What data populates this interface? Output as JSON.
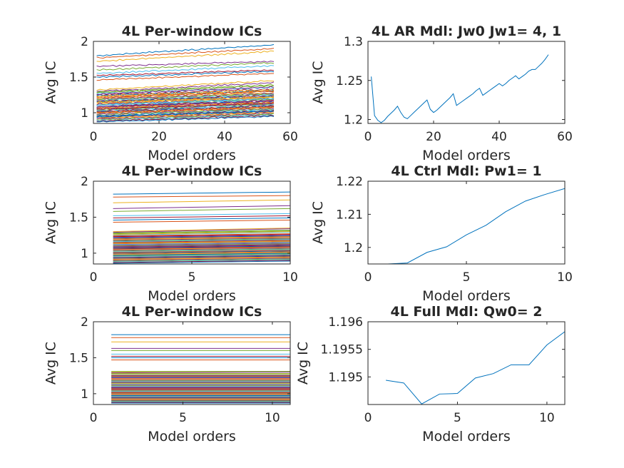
{
  "chart_data": [
    {
      "type": "line",
      "title": "4L Per-window ICs",
      "xlabel": "Model orders",
      "ylabel": "Avg IC",
      "xlim": [
        0,
        60
      ],
      "ylim": [
        0.85,
        2
      ],
      "xticks": [
        "0",
        "20",
        "40",
        "60"
      ],
      "yticks": [
        "1",
        "1.5",
        "2"
      ],
      "x_range": [
        1,
        55
      ],
      "series_count": 60,
      "series_start_values": [
        1.8,
        1.77,
        1.72,
        1.65,
        1.6,
        1.55,
        1.52,
        1.5,
        1.46,
        1.32,
        1.3,
        1.28,
        1.27,
        1.25,
        1.24,
        1.22,
        1.2,
        1.19,
        1.18,
        1.17,
        1.16,
        1.15,
        1.14,
        1.13,
        1.12,
        1.11,
        1.1,
        1.09,
        1.08,
        1.07,
        1.06,
        1.05,
        1.04,
        1.03,
        1.02,
        1.01,
        1.0,
        0.99,
        0.98,
        0.97,
        0.96,
        0.95,
        0.94,
        0.93,
        0.92,
        0.91,
        0.9,
        0.89,
        0.88,
        0.87,
        1.21,
        1.23,
        1.26,
        1.29,
        1.11,
        1.05,
        0.95,
        1.0,
        1.15,
        1.08
      ],
      "series_end_values": [
        1.95,
        1.9,
        1.86,
        1.72,
        1.7,
        1.66,
        1.6,
        1.58,
        1.55,
        1.45,
        1.42,
        1.38,
        1.35,
        1.33,
        1.31,
        1.3,
        1.28,
        1.27,
        1.26,
        1.25,
        1.24,
        1.23,
        1.22,
        1.21,
        1.2,
        1.19,
        1.18,
        1.17,
        1.16,
        1.15,
        1.14,
        1.13,
        1.12,
        1.11,
        1.1,
        1.09,
        1.08,
        1.07,
        1.06,
        1.05,
        1.04,
        1.03,
        1.02,
        1.01,
        1.0,
        0.99,
        0.98,
        0.97,
        0.96,
        0.95,
        1.3,
        1.32,
        1.36,
        1.39,
        1.2,
        1.13,
        1.02,
        1.08,
        1.22,
        1.16
      ]
    },
    {
      "type": "line",
      "title": "4L AR Mdl: Jw0 Jw1= 4, 1",
      "xlabel": "Model orders",
      "ylabel": "Avg IC",
      "xlim": [
        0,
        60
      ],
      "ylim": [
        1.195,
        1.3
      ],
      "xticks": [
        "0",
        "20",
        "40",
        "60"
      ],
      "yticks": [
        "1.2",
        "1.25",
        "1.3"
      ],
      "series": [
        {
          "x": [
            1,
            2,
            3,
            4,
            5,
            6,
            7,
            8,
            9,
            10,
            11,
            12,
            13,
            14,
            15,
            16,
            17,
            18,
            19,
            20,
            21,
            22,
            23,
            24,
            25,
            26,
            27,
            28,
            29,
            30,
            31,
            32,
            33,
            34,
            35,
            36,
            37,
            38,
            39,
            40,
            41,
            42,
            43,
            44,
            45,
            46,
            47,
            48,
            49,
            50,
            51,
            52,
            53,
            54,
            55
          ],
          "values": [
            1.255,
            1.205,
            1.199,
            1.196,
            1.199,
            1.204,
            1.208,
            1.212,
            1.217,
            1.209,
            1.203,
            1.201,
            1.205,
            1.209,
            1.213,
            1.217,
            1.221,
            1.225,
            1.213,
            1.209,
            1.212,
            1.216,
            1.22,
            1.224,
            1.228,
            1.233,
            1.218,
            1.221,
            1.224,
            1.227,
            1.23,
            1.233,
            1.237,
            1.24,
            1.231,
            1.234,
            1.237,
            1.24,
            1.243,
            1.246,
            1.243,
            1.246,
            1.25,
            1.253,
            1.256,
            1.252,
            1.255,
            1.258,
            1.262,
            1.264,
            1.264,
            1.268,
            1.272,
            1.277,
            1.283
          ]
        }
      ]
    },
    {
      "type": "line",
      "title": "4L Per-window ICs",
      "xlabel": "Model orders",
      "ylabel": "Avg IC",
      "xlim": [
        0,
        10
      ],
      "ylim": [
        0.85,
        2
      ],
      "xticks": [
        "0",
        "5",
        "10"
      ],
      "yticks": [
        "1",
        "1.5",
        "2"
      ],
      "x_range": [
        1,
        10
      ],
      "series_count": 60,
      "series_start_values": [
        1.82,
        1.78,
        1.7,
        1.62,
        1.58,
        1.52,
        1.49,
        1.46,
        1.43,
        1.3,
        1.29,
        1.27,
        1.25,
        1.23,
        1.21,
        1.2,
        1.19,
        1.18,
        1.17,
        1.16,
        1.15,
        1.14,
        1.13,
        1.12,
        1.11,
        1.1,
        1.09,
        1.08,
        1.07,
        1.06,
        1.05,
        1.04,
        1.03,
        1.02,
        1.01,
        1.0,
        0.99,
        0.98,
        0.97,
        0.96,
        0.95,
        0.94,
        0.93,
        0.92,
        0.91,
        0.9,
        0.89,
        0.88,
        0.87,
        0.86,
        1.24,
        1.26,
        1.22,
        1.28,
        1.12,
        1.06,
        0.97,
        1.01,
        1.14,
        1.09
      ],
      "series_end_values": [
        1.85,
        1.8,
        1.74,
        1.66,
        1.62,
        1.55,
        1.52,
        1.49,
        1.46,
        1.35,
        1.34,
        1.31,
        1.29,
        1.26,
        1.24,
        1.23,
        1.22,
        1.21,
        1.2,
        1.19,
        1.18,
        1.17,
        1.16,
        1.15,
        1.14,
        1.13,
        1.12,
        1.11,
        1.1,
        1.09,
        1.08,
        1.07,
        1.06,
        1.05,
        1.04,
        1.03,
        1.02,
        1.01,
        1.0,
        0.99,
        0.98,
        0.97,
        0.96,
        0.95,
        0.94,
        0.93,
        0.92,
        0.91,
        0.9,
        0.89,
        1.27,
        1.3,
        1.25,
        1.32,
        1.15,
        1.09,
        1.0,
        1.04,
        1.17,
        1.12
      ]
    },
    {
      "type": "line",
      "title": "4L Ctrl Mdl: Pw1= 1",
      "xlabel": "Model orders",
      "ylabel": "Avg IC",
      "xlim": [
        0,
        10
      ],
      "ylim": [
        1.195,
        1.22
      ],
      "xticks": [
        "0",
        "5",
        "10"
      ],
      "yticks": [
        "1.2",
        "1.21",
        "1.22"
      ],
      "series": [
        {
          "x": [
            1,
            2,
            3,
            4,
            5,
            6,
            7,
            8,
            9,
            10
          ],
          "values": [
            1.195,
            1.1953,
            1.1985,
            1.2002,
            1.2038,
            1.2067,
            1.2108,
            1.214,
            1.216,
            1.2178
          ]
        }
      ]
    },
    {
      "type": "line",
      "title": "4L Full Mdl: Qw0= 2",
      "xlabel": "Model orders",
      "ylabel": "Avg IC",
      "xlim": [
        0,
        11
      ],
      "ylim": [
        1.1945,
        1.196
      ],
      "xticks": [
        "0",
        "5",
        "10"
      ],
      "yticks": [
        "1.195",
        "1.1955",
        "1.196"
      ],
      "series": [
        {
          "x": [
            1,
            2,
            3,
            4,
            5,
            6,
            7,
            8,
            9,
            10,
            11
          ],
          "values": [
            1.19494,
            1.19489,
            1.19451,
            1.19469,
            1.1947,
            1.19498,
            1.19506,
            1.19522,
            1.19522,
            1.19558,
            1.19582
          ]
        }
      ]
    },
    {
      "type": "line",
      "title": "4L Per-window ICs",
      "xlabel": "Model orders",
      "ylabel": "Avg IC",
      "xlim": [
        0,
        11
      ],
      "ylim": [
        0.85,
        2
      ],
      "xticks": [
        "0",
        "5",
        "10"
      ],
      "yticks": [
        "1",
        "1.5",
        "2"
      ],
      "x_range": [
        1,
        11
      ],
      "series_count": 60,
      "series_start_values": [
        1.82,
        1.78,
        1.72,
        1.63,
        1.6,
        1.55,
        1.52,
        1.5,
        1.47,
        1.3,
        1.29,
        1.28,
        1.26,
        1.25,
        1.23,
        1.21,
        1.2,
        1.19,
        1.18,
        1.17,
        1.16,
        1.15,
        1.14,
        1.13,
        1.12,
        1.11,
        1.1,
        1.09,
        1.08,
        1.07,
        1.06,
        1.05,
        1.04,
        1.03,
        1.02,
        1.01,
        1.0,
        0.99,
        0.98,
        0.97,
        0.96,
        0.95,
        0.94,
        0.93,
        0.92,
        0.91,
        0.9,
        0.89,
        0.88,
        0.87,
        1.24,
        1.27,
        1.22,
        1.31,
        1.135,
        1.065,
        0.975,
        1.015,
        1.145,
        1.085
      ],
      "series_end_values": [
        1.82,
        1.78,
        1.72,
        1.63,
        1.6,
        1.55,
        1.52,
        1.5,
        1.47,
        1.31,
        1.3,
        1.28,
        1.26,
        1.25,
        1.23,
        1.21,
        1.2,
        1.19,
        1.18,
        1.17,
        1.16,
        1.15,
        1.14,
        1.13,
        1.12,
        1.11,
        1.1,
        1.09,
        1.08,
        1.07,
        1.06,
        1.05,
        1.04,
        1.03,
        1.02,
        1.01,
        1.0,
        0.99,
        0.98,
        0.97,
        0.96,
        0.95,
        0.94,
        0.93,
        0.92,
        0.91,
        0.9,
        0.89,
        0.88,
        0.87,
        1.24,
        1.27,
        1.22,
        1.31,
        1.135,
        1.065,
        0.975,
        1.015,
        1.145,
        1.085
      ]
    }
  ],
  "colors": {
    "line_palette": [
      "#0072BD",
      "#D95319",
      "#EDB120",
      "#7E2F8E",
      "#77AC30",
      "#4DBEEE",
      "#A2142F"
    ],
    "single_series": "#0072BD",
    "axis": "#262626"
  }
}
